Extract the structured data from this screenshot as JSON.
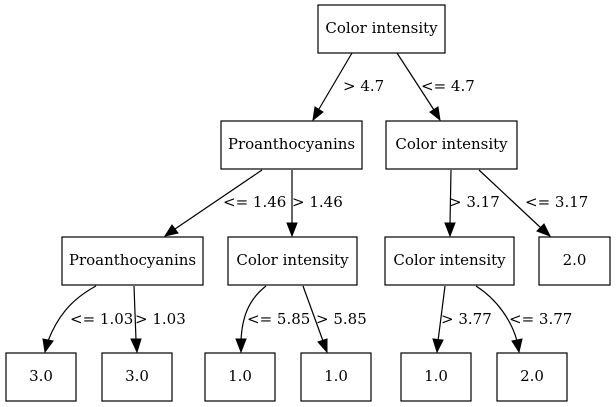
{
  "diagram": {
    "type": "decision-tree",
    "nodes": {
      "root": "Color intensity",
      "l": "Proanthocyanins",
      "r": "Color intensity",
      "ll": "Proanthocyanins",
      "lr": "Color intensity",
      "rl": "Color intensity",
      "rr": "2.0",
      "lll": "3.0",
      "llr": "3.0",
      "lrl": "1.0",
      "lrr": "1.0",
      "rll": "1.0",
      "rlr": "2.0"
    },
    "edges": {
      "root_l": "> 4.7",
      "root_r": "<= 4.7",
      "l_ll": "<= 1.46",
      "l_lr": "> 1.46",
      "r_rl": "> 3.17",
      "r_rr": "<= 3.17",
      "ll_lll": "<= 1.03",
      "ll_llr": "> 1.03",
      "lr_lrl": "<= 5.85",
      "lr_lrr": "> 5.85",
      "rl_rll": "> 3.77",
      "rl_rlr": "<= 3.77"
    }
  }
}
